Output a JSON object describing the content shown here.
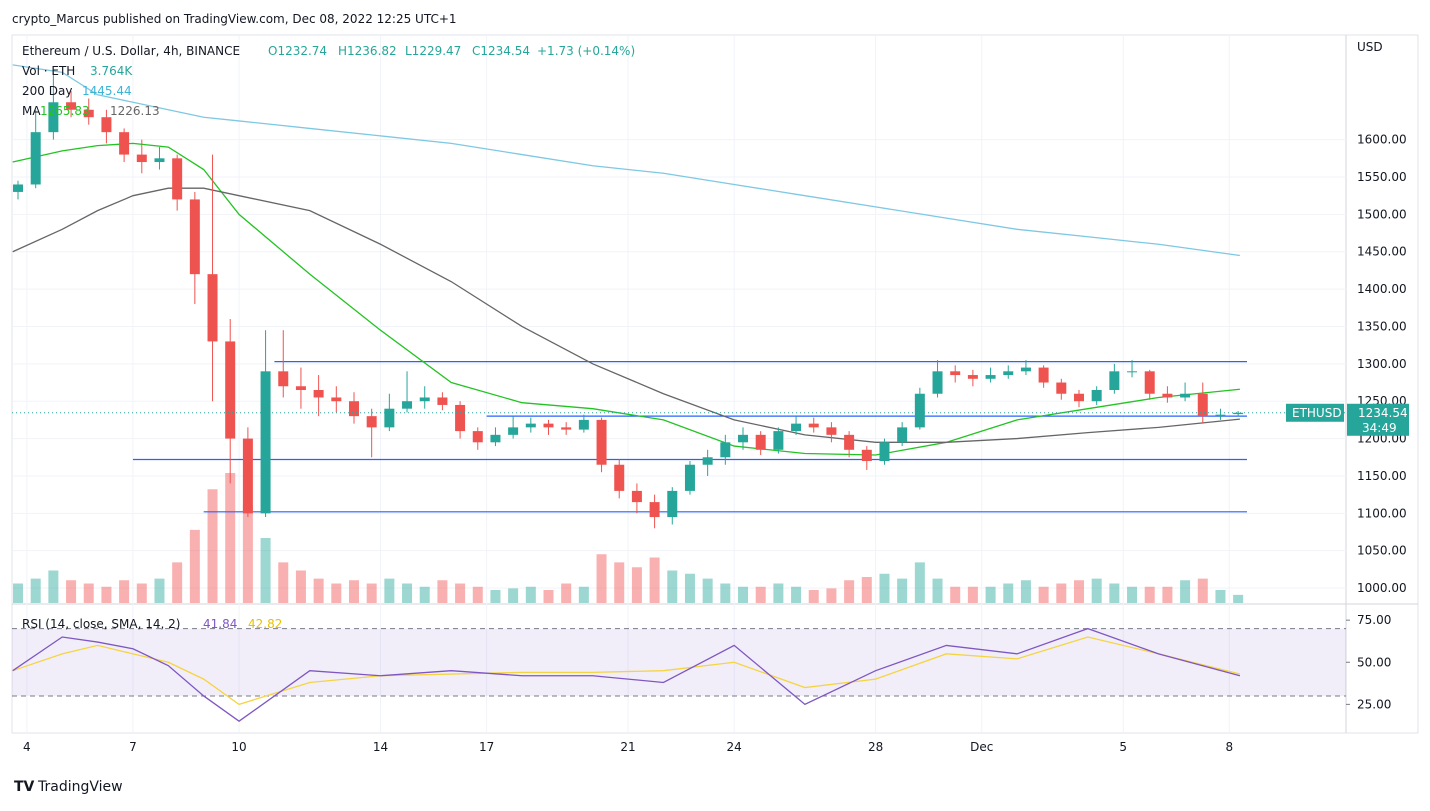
{
  "header": "crypto_Marcus published on TradingView.com, Dec 08, 2022 12:25 UTC+1",
  "footer": "TradingView",
  "legend": {
    "symbol": "Ethereum / U.S. Dollar, 4h, BINANCE",
    "o": "O1232.74",
    "h": "H1236.82",
    "l": "L1229.47",
    "c": "C1234.54",
    "chg": "+1.73 (+0.14%)",
    "vol": "Vol · ETH",
    "vol_value": "3.764K",
    "ma200": "200 Day",
    "ma200_value": "1445.44",
    "ma": "MA",
    "ma_value": "1265.83",
    "ma2_value": "1226.13"
  },
  "currency": "USD",
  "price_tag": {
    "symbol": "ETHUSD",
    "price": "1234.54",
    "timer": "34:49"
  },
  "rsi_legend": {
    "name": "RSI (14, close, SMA, 14, 2)",
    "rsi": "41.84",
    "ma": "42.82"
  },
  "chart_data": {
    "type": "candlestick",
    "xlim": [
      -0.42,
      37.3
    ],
    "xticks": [
      {
        "value": 0,
        "label": "4"
      },
      {
        "value": 3,
        "label": "7"
      },
      {
        "value": 6,
        "label": "10"
      },
      {
        "value": 10,
        "label": "14"
      },
      {
        "value": 13,
        "label": "17"
      },
      {
        "value": 17,
        "label": "21"
      },
      {
        "value": 20,
        "label": "24"
      },
      {
        "value": 24,
        "label": "28"
      },
      {
        "value": 27,
        "label": "Dec"
      },
      {
        "value": 31,
        "label": "5"
      },
      {
        "value": 34,
        "label": "8"
      }
    ],
    "ylim": [
      980,
      1740
    ],
    "yticks": [
      {
        "value": 1000,
        "label": "1000.00"
      },
      {
        "value": 1050,
        "label": "1050.00"
      },
      {
        "value": 1100,
        "label": "1100.00"
      },
      {
        "value": 1150,
        "label": "1150.00"
      },
      {
        "value": 1200,
        "label": "1200.00"
      },
      {
        "value": 1250,
        "label": "1250.00"
      },
      {
        "value": 1300,
        "label": "1300.00"
      },
      {
        "value": 1350,
        "label": "1350.00"
      },
      {
        "value": 1400,
        "label": "1400.00"
      },
      {
        "value": 1450,
        "label": "1450.00"
      },
      {
        "value": 1500,
        "label": "1500.00"
      },
      {
        "value": 1550,
        "label": "1550.00"
      },
      {
        "value": 1600,
        "label": "1600.00"
      }
    ],
    "up_color": "#26a69a",
    "down_color": "#ef5350",
    "x": [
      -0.25,
      0.25,
      0.75,
      1.25,
      1.75,
      2.25,
      2.75,
      3.25,
      3.75,
      4.25,
      4.75,
      5.25,
      5.75,
      6.25,
      6.75,
      7.25,
      7.75,
      8.25,
      8.75,
      9.25,
      9.75,
      10.25,
      10.75,
      11.25,
      11.75,
      12.25,
      12.75,
      13.25,
      13.75,
      14.25,
      14.75,
      15.25,
      15.75,
      16.25,
      16.75,
      17.25,
      17.75,
      18.25,
      18.75,
      19.25,
      19.75,
      20.25,
      20.75,
      21.25,
      21.75,
      22.25,
      22.75,
      23.25,
      23.75,
      24.25,
      24.75,
      25.25,
      25.75,
      26.25,
      26.75,
      27.25,
      27.75,
      28.25,
      28.75,
      29.25,
      29.75,
      30.25,
      30.75,
      31.25,
      31.75,
      32.25,
      32.75,
      33.25,
      33.75,
      34.25
    ],
    "candles": [
      [
        1530,
        1545,
        1520,
        1540
      ],
      [
        1540,
        1640,
        1535,
        1610
      ],
      [
        1610,
        1690,
        1600,
        1650
      ],
      [
        1650,
        1665,
        1630,
        1640
      ],
      [
        1640,
        1655,
        1620,
        1630
      ],
      [
        1630,
        1640,
        1595,
        1610
      ],
      [
        1610,
        1615,
        1570,
        1580
      ],
      [
        1580,
        1600,
        1555,
        1570
      ],
      [
        1570,
        1590,
        1560,
        1575
      ],
      [
        1575,
        1580,
        1505,
        1520
      ],
      [
        1520,
        1530,
        1380,
        1420
      ],
      [
        1420,
        1580,
        1250,
        1330
      ],
      [
        1330,
        1360,
        1140,
        1200
      ],
      [
        1200,
        1215,
        1095,
        1100
      ],
      [
        1100,
        1345,
        1095,
        1290
      ],
      [
        1290,
        1345,
        1255,
        1270
      ],
      [
        1270,
        1295,
        1240,
        1265
      ],
      [
        1265,
        1285,
        1230,
        1255
      ],
      [
        1255,
        1270,
        1235,
        1250
      ],
      [
        1250,
        1262,
        1220,
        1230
      ],
      [
        1230,
        1240,
        1175,
        1215
      ],
      [
        1215,
        1260,
        1210,
        1240
      ],
      [
        1240,
        1290,
        1235,
        1250
      ],
      [
        1250,
        1270,
        1240,
        1255
      ],
      [
        1255,
        1262,
        1238,
        1245
      ],
      [
        1245,
        1250,
        1200,
        1210
      ],
      [
        1210,
        1215,
        1185,
        1195
      ],
      [
        1195,
        1215,
        1190,
        1205
      ],
      [
        1205,
        1230,
        1200,
        1215
      ],
      [
        1215,
        1228,
        1208,
        1220
      ],
      [
        1220,
        1225,
        1205,
        1215
      ],
      [
        1215,
        1222,
        1205,
        1212
      ],
      [
        1212,
        1232,
        1208,
        1225
      ],
      [
        1225,
        1228,
        1155,
        1165
      ],
      [
        1165,
        1172,
        1120,
        1130
      ],
      [
        1130,
        1140,
        1100,
        1115
      ],
      [
        1115,
        1125,
        1080,
        1095
      ],
      [
        1095,
        1135,
        1085,
        1130
      ],
      [
        1130,
        1170,
        1125,
        1165
      ],
      [
        1165,
        1185,
        1150,
        1175
      ],
      [
        1175,
        1205,
        1165,
        1195
      ],
      [
        1195,
        1215,
        1185,
        1205
      ],
      [
        1205,
        1210,
        1178,
        1185
      ],
      [
        1185,
        1215,
        1180,
        1210
      ],
      [
        1210,
        1230,
        1205,
        1220
      ],
      [
        1220,
        1228,
        1208,
        1215
      ],
      [
        1215,
        1222,
        1195,
        1205
      ],
      [
        1205,
        1210,
        1175,
        1185
      ],
      [
        1185,
        1190,
        1158,
        1170
      ],
      [
        1170,
        1200,
        1165,
        1195
      ],
      [
        1195,
        1222,
        1190,
        1215
      ],
      [
        1215,
        1268,
        1212,
        1260
      ],
      [
        1260,
        1305,
        1255,
        1290
      ],
      [
        1290,
        1298,
        1275,
        1285
      ],
      [
        1285,
        1292,
        1270,
        1280
      ],
      [
        1280,
        1295,
        1275,
        1285
      ],
      [
        1285,
        1298,
        1280,
        1290
      ],
      [
        1290,
        1305,
        1285,
        1295
      ],
      [
        1295,
        1298,
        1268,
        1275
      ],
      [
        1275,
        1280,
        1252,
        1260
      ],
      [
        1260,
        1265,
        1242,
        1250
      ],
      [
        1250,
        1270,
        1245,
        1265
      ],
      [
        1265,
        1300,
        1260,
        1290
      ],
      [
        1290,
        1305,
        1282,
        1290
      ],
      [
        1290,
        1292,
        1252,
        1260
      ],
      [
        1260,
        1270,
        1248,
        1255
      ],
      [
        1255,
        1275,
        1250,
        1260
      ],
      [
        1260,
        1275,
        1220,
        1230
      ],
      [
        1230,
        1240,
        1225,
        1232
      ],
      [
        1232.74,
        1236.82,
        1229.47,
        1234.54
      ]
    ],
    "volume": [
      12,
      15,
      20,
      14,
      12,
      10,
      14,
      12,
      15,
      25,
      45,
      70,
      80,
      60,
      40,
      25,
      20,
      15,
      12,
      14,
      12,
      15,
      12,
      10,
      14,
      12,
      10,
      8,
      9,
      10,
      8,
      12,
      10,
      30,
      25,
      22,
      28,
      20,
      18,
      15,
      12,
      10,
      10,
      12,
      10,
      8,
      9,
      14,
      16,
      18,
      15,
      25,
      15,
      10,
      10,
      10,
      12,
      14,
      10,
      12,
      14,
      15,
      12,
      10,
      10,
      10,
      14,
      15,
      8,
      5
    ],
    "lines_x": [
      -0.4,
      1,
      2,
      3,
      4,
      5,
      6,
      8,
      10,
      12,
      14,
      16,
      18,
      20,
      22,
      24,
      26,
      28,
      30,
      32,
      34.3
    ],
    "lines": [
      {
        "color": "#7ec8e3",
        "values": [
          1700,
          1690,
          1660,
          1650,
          1640,
          1630,
          1625,
          1615,
          1605,
          1595,
          1580,
          1565,
          1555,
          1540,
          1525,
          1510,
          1495,
          1480,
          1470,
          1460,
          1445
        ]
      },
      {
        "color": "#22c322",
        "values": [
          1570,
          1585,
          1592,
          1595,
          1590,
          1560,
          1500,
          1420,
          1345,
          1275,
          1248,
          1240,
          1225,
          1190,
          1180,
          1178,
          1195,
          1225,
          1240,
          1255,
          1266
        ]
      },
      {
        "color": "#666666",
        "values": [
          1450,
          1480,
          1505,
          1525,
          1535,
          1535,
          1525,
          1505,
          1460,
          1410,
          1350,
          1300,
          1260,
          1225,
          1205,
          1195,
          1195,
          1200,
          1208,
          1215,
          1226
        ]
      }
    ],
    "levels": [
      {
        "value": 1303,
        "x": [
          7,
          34.5
        ]
      },
      {
        "value": 1230,
        "x": [
          13,
          34.5
        ]
      },
      {
        "value": 1172,
        "x": [
          3,
          34.5
        ]
      },
      {
        "value": 1102,
        "x": [
          5,
          34.5
        ]
      }
    ],
    "rsi_ylim": [
      8,
      84
    ],
    "rsi_yticks": [
      {
        "value": 25,
        "label": "25.00"
      },
      {
        "value": 50,
        "label": "50.00"
      },
      {
        "value": 75,
        "label": "75.00"
      }
    ],
    "rsi_band": [
      30,
      70
    ],
    "rsi": [
      45,
      65,
      62,
      58,
      48,
      30,
      15,
      45,
      42,
      45,
      42,
      42,
      38,
      60,
      25,
      45,
      60,
      55,
      70,
      55,
      42
    ],
    "rsi_ma": [
      45,
      55,
      60,
      55,
      50,
      40,
      25,
      38,
      42,
      43,
      44,
      44,
      45,
      50,
      35,
      40,
      55,
      52,
      65,
      55,
      43
    ]
  }
}
